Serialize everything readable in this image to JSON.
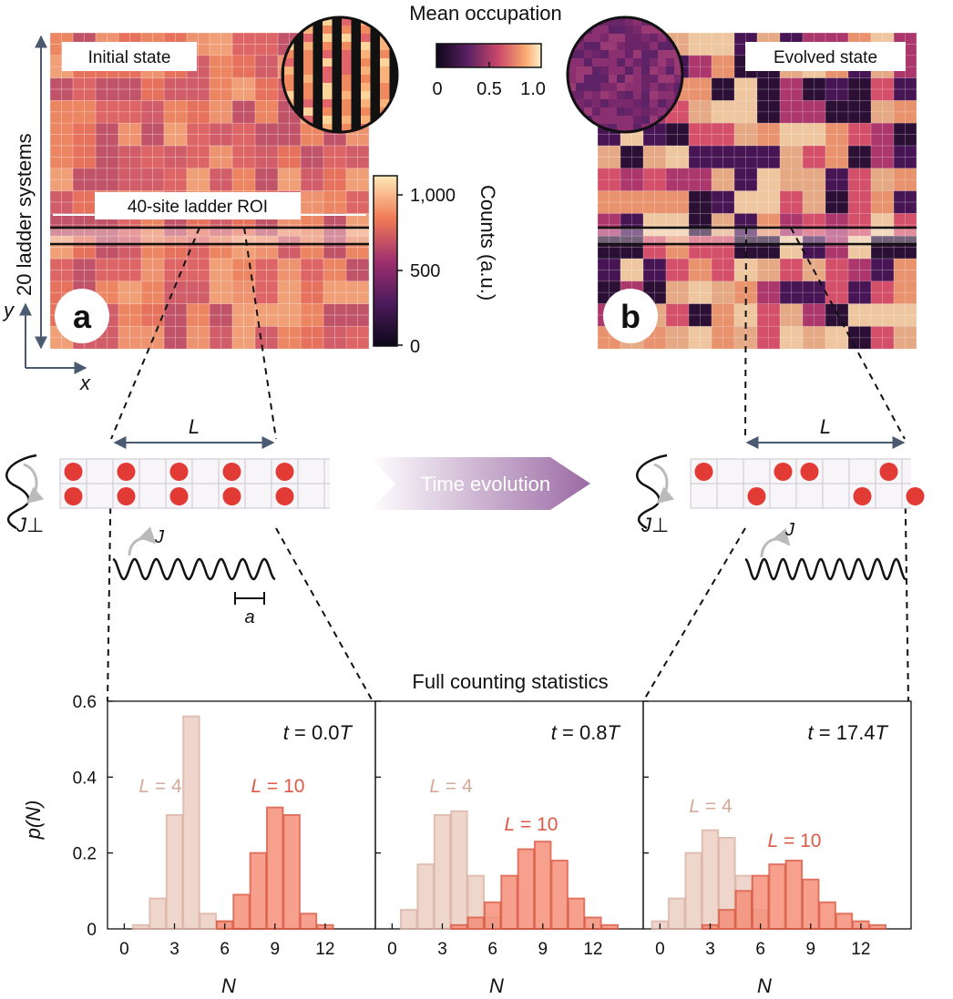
{
  "colors": {
    "lowCount": "#0d0718",
    "midCount": "#a0306e",
    "highCount": "#ffe9b8",
    "barLight": "#ecd0c5",
    "barLightEdge": "#dcb3a4",
    "barDark": "#f5907a",
    "barDarkEdge": "#dc5b45",
    "atom": "#e23a35",
    "arrowAxis": "#4a5a70",
    "timeArrow": "#9b6aa4"
  },
  "panelA": {
    "badge": "a",
    "label": "Initial state",
    "roi_label": "40-site ladder ROI"
  },
  "panelB": {
    "badge": "b",
    "label": "Evolved state"
  },
  "axes": {
    "y_system_label": "20 ladder systems",
    "y": "y",
    "x": "x"
  },
  "mean_occupation": {
    "title": "Mean occupation",
    "ticks": [
      "0",
      "0.5",
      "1.0"
    ]
  },
  "counts_colorbar": {
    "label": "Counts (a.u.)",
    "ticks": [
      "1,000",
      "500",
      "0"
    ]
  },
  "ladder": {
    "L": "L",
    "J_perp": "J⊥",
    "J": "J",
    "a": "a",
    "time_evolution": "Time evolution"
  },
  "chart_data": {
    "type": "bar",
    "title": "Full counting statistics",
    "xlabel": "N",
    "ylabel": "p(N)",
    "ylim": [
      0,
      0.6
    ],
    "xlim": [
      -1,
      15
    ],
    "yticks": [
      "0.6",
      "0.4",
      "0.2",
      "0"
    ],
    "xticks": [
      0,
      3,
      6,
      9,
      12
    ],
    "panels": [
      {
        "time_label": "t = 0.0T",
        "series": [
          {
            "name": "L = 4",
            "x": [
              0,
              1,
              2,
              3,
              4,
              5,
              6
            ],
            "values": [
              0.0,
              0.01,
              0.08,
              0.3,
              0.56,
              0.04,
              0.02
            ]
          },
          {
            "name": "L = 10",
            "x": [
              4,
              5,
              6,
              7,
              8,
              9,
              10,
              11,
              12,
              13
            ],
            "values": [
              0.0,
              0.0,
              0.02,
              0.09,
              0.2,
              0.32,
              0.3,
              0.04,
              0.01,
              0.0
            ]
          }
        ]
      },
      {
        "time_label": "t = 0.8T",
        "series": [
          {
            "name": "L = 4",
            "x": [
              0,
              1,
              2,
              3,
              4,
              5,
              6,
              7
            ],
            "values": [
              0.0,
              0.05,
              0.17,
              0.3,
              0.31,
              0.14,
              0.03,
              0.0
            ]
          },
          {
            "name": "L = 10",
            "x": [
              4,
              5,
              6,
              7,
              8,
              9,
              10,
              11,
              12,
              13
            ],
            "values": [
              0.01,
              0.03,
              0.07,
              0.14,
              0.21,
              0.23,
              0.18,
              0.08,
              0.03,
              0.01
            ]
          }
        ]
      },
      {
        "time_label": "t = 17.4T",
        "series": [
          {
            "name": "L = 4",
            "x": [
              0,
              1,
              2,
              3,
              4,
              5,
              6
            ],
            "values": [
              0.02,
              0.08,
              0.2,
              0.26,
              0.24,
              0.14,
              0.05
            ]
          },
          {
            "name": "L = 10",
            "x": [
              3,
              4,
              5,
              6,
              7,
              8,
              9,
              10,
              11,
              12,
              13
            ],
            "values": [
              0.01,
              0.05,
              0.1,
              0.14,
              0.17,
              0.18,
              0.13,
              0.07,
              0.04,
              0.02,
              0.01
            ]
          }
        ]
      }
    ]
  }
}
